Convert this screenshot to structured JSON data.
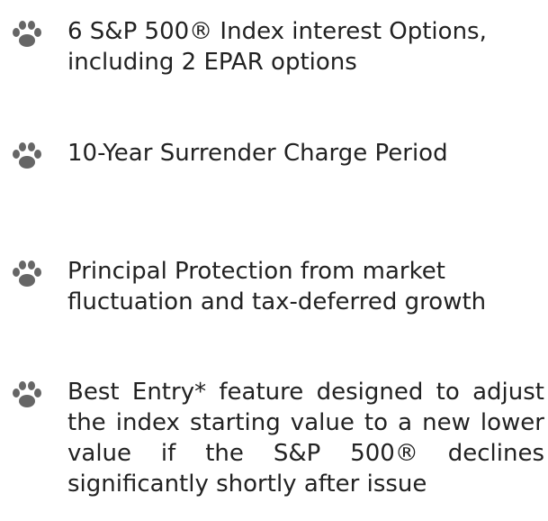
{
  "items": [
    {
      "text": "6 S&P 500® Index interest Options, including 2 EPAR options"
    },
    {
      "text": "10-Year Surrender Charge Period"
    },
    {
      "text": "Principal Protection from market fluctuation and tax-deferred growth"
    },
    {
      "text": "Best Entry* feature designed to adjust the index starting value to a new lower value if the S&P 500® declines significantly shortly after issue"
    }
  ]
}
